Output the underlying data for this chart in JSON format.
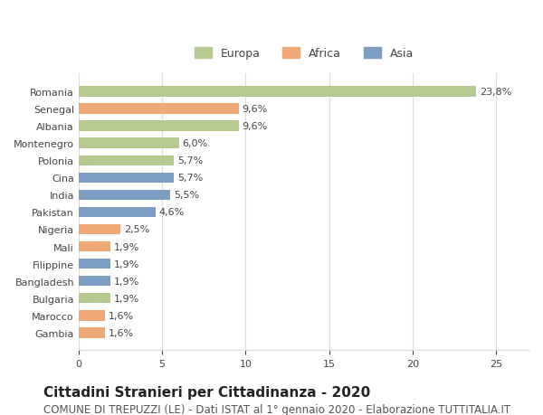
{
  "categories": [
    "Romania",
    "Senegal",
    "Albania",
    "Montenegro",
    "Polonia",
    "Cina",
    "India",
    "Pakistan",
    "Nigeria",
    "Mali",
    "Filippine",
    "Bangladesh",
    "Bulgaria",
    "Marocco",
    "Gambia"
  ],
  "values": [
    23.8,
    9.6,
    9.6,
    6.0,
    5.7,
    5.7,
    5.5,
    4.6,
    2.5,
    1.9,
    1.9,
    1.9,
    1.9,
    1.6,
    1.6
  ],
  "labels": [
    "23,8%",
    "9,6%",
    "9,6%",
    "6,0%",
    "5,7%",
    "5,7%",
    "5,5%",
    "4,6%",
    "2,5%",
    "1,9%",
    "1,9%",
    "1,9%",
    "1,9%",
    "1,6%",
    "1,6%"
  ],
  "continents": [
    "Europa",
    "Africa",
    "Europa",
    "Europa",
    "Europa",
    "Asia",
    "Asia",
    "Asia",
    "Africa",
    "Africa",
    "Asia",
    "Asia",
    "Europa",
    "Africa",
    "Africa"
  ],
  "colors": {
    "Europa": "#b5c990",
    "Africa": "#f0a875",
    "Asia": "#7b9ec2"
  },
  "legend_labels": [
    "Europa",
    "Africa",
    "Asia"
  ],
  "title": "Cittadini Stranieri per Cittadinanza - 2020",
  "subtitle": "COMUNE DI TREPUZZI (LE) - Dati ISTAT al 1° gennaio 2020 - Elaborazione TUTTITALIA.IT",
  "xlim": [
    0,
    27
  ],
  "xticks": [
    0,
    5,
    10,
    15,
    20,
    25
  ],
  "background_color": "#ffffff",
  "grid_color": "#dddddd",
  "bar_height": 0.6,
  "title_fontsize": 11,
  "subtitle_fontsize": 8.5,
  "label_fontsize": 8,
  "tick_fontsize": 8,
  "legend_fontsize": 9
}
